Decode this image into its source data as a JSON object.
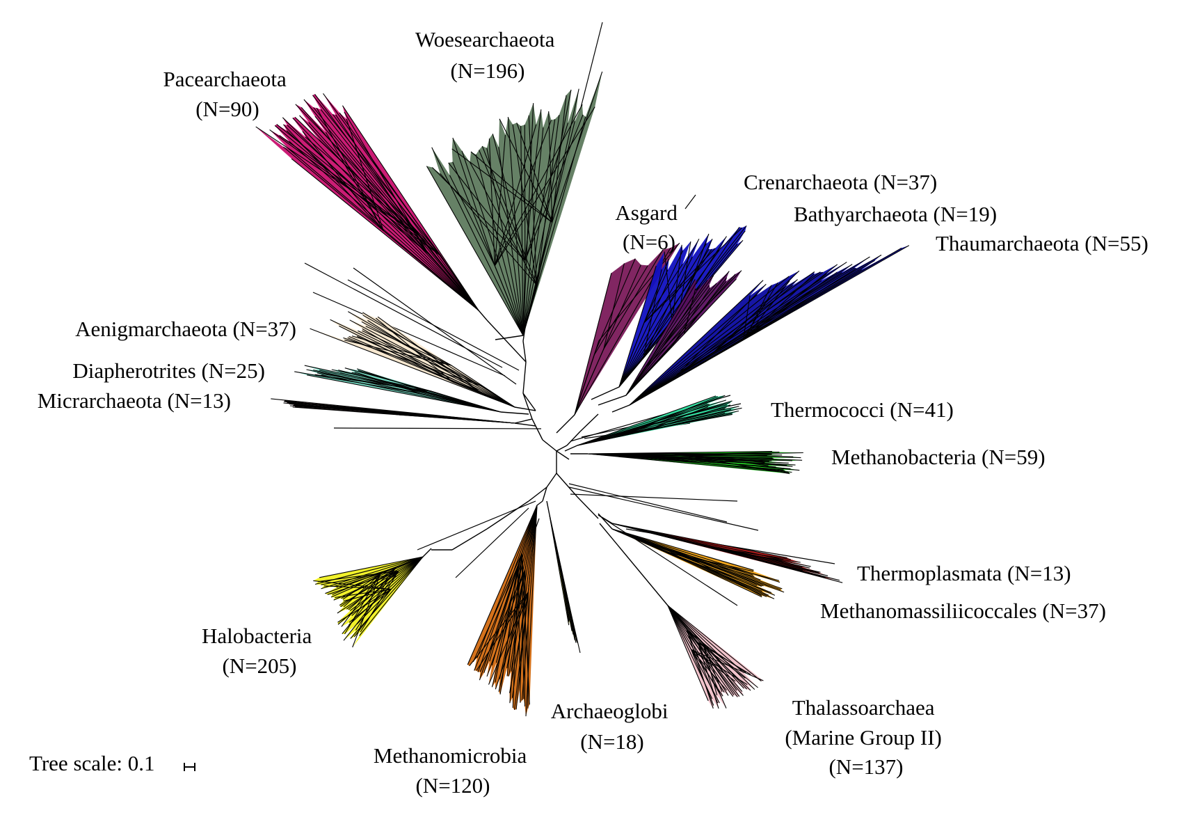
{
  "tree_scale": {
    "label": "Tree scale: 0.1"
  },
  "clades": [
    {
      "id": "woesearchaeota",
      "lines": [
        "Woesearchaeota",
        "(N=196)"
      ],
      "color": "#5e7a5e",
      "n": 196
    },
    {
      "id": "pacearchaeota",
      "lines": [
        "Pacearchaeota",
        "(N=90)"
      ],
      "color": "#c8106e",
      "n": 90
    },
    {
      "id": "asgard",
      "lines": [
        "Asgard",
        "(N=6)"
      ],
      "color": "#7a1a5a",
      "n": 6
    },
    {
      "id": "crenarchaeota",
      "lines": [
        "Crenarchaeota (N=37)"
      ],
      "color": "#1010c0",
      "n": 37
    },
    {
      "id": "bathyarchaeota",
      "lines": [
        "Bathyarchaeota (N=19)"
      ],
      "color": "#5a1060",
      "n": 19
    },
    {
      "id": "thaumarchaeota",
      "lines": [
        "Thaumarchaeota (N=55)"
      ],
      "color": "#0a0aa0",
      "n": 55
    },
    {
      "id": "aenigmarchaeota",
      "lines": [
        "Aenigmarchaeota (N=37)"
      ],
      "color": "#f5e6cc",
      "n": 37
    },
    {
      "id": "diapherotrites",
      "lines": [
        "Diapherotrites (N=25)"
      ],
      "color": "#6fd9c0",
      "n": 25
    },
    {
      "id": "micrarchaeota",
      "lines": [
        "Micrarchaeota (N=13)"
      ],
      "color": "#e9b8c0",
      "n": 13
    },
    {
      "id": "thermococci",
      "lines": [
        "Thermococci (N=41)"
      ],
      "color": "#2de0a0",
      "n": 41
    },
    {
      "id": "methanobacteria",
      "lines": [
        "Methanobacteria (N=59)"
      ],
      "color": "#1ee01e",
      "n": 59
    },
    {
      "id": "thermoplasmata",
      "lines": [
        "Thermoplasmata (N=13)"
      ],
      "color": "#b01010",
      "n": 13
    },
    {
      "id": "methanomassiliicoccales",
      "lines": [
        "Methanomassiliicoccales (N=37)"
      ],
      "color": "#f0a010",
      "n": 37
    },
    {
      "id": "halobacteria",
      "lines": [
        "Halobacteria",
        "(N=205)"
      ],
      "color": "#f0f020",
      "n": 205
    },
    {
      "id": "methanomicrobia",
      "lines": [
        "Methanomicrobia",
        "(N=120)"
      ],
      "color": "#d26a10",
      "n": 120
    },
    {
      "id": "archaeoglobi",
      "lines": [
        "Archaeoglobi",
        "(N=18)"
      ],
      "color": "#d8e040",
      "n": 18
    },
    {
      "id": "thalassoarchaea",
      "lines": [
        "Thalassoarchaea",
        "(Marine Group II)",
        "(N=137)"
      ],
      "color": "#f0c0c8",
      "n": 137
    }
  ]
}
